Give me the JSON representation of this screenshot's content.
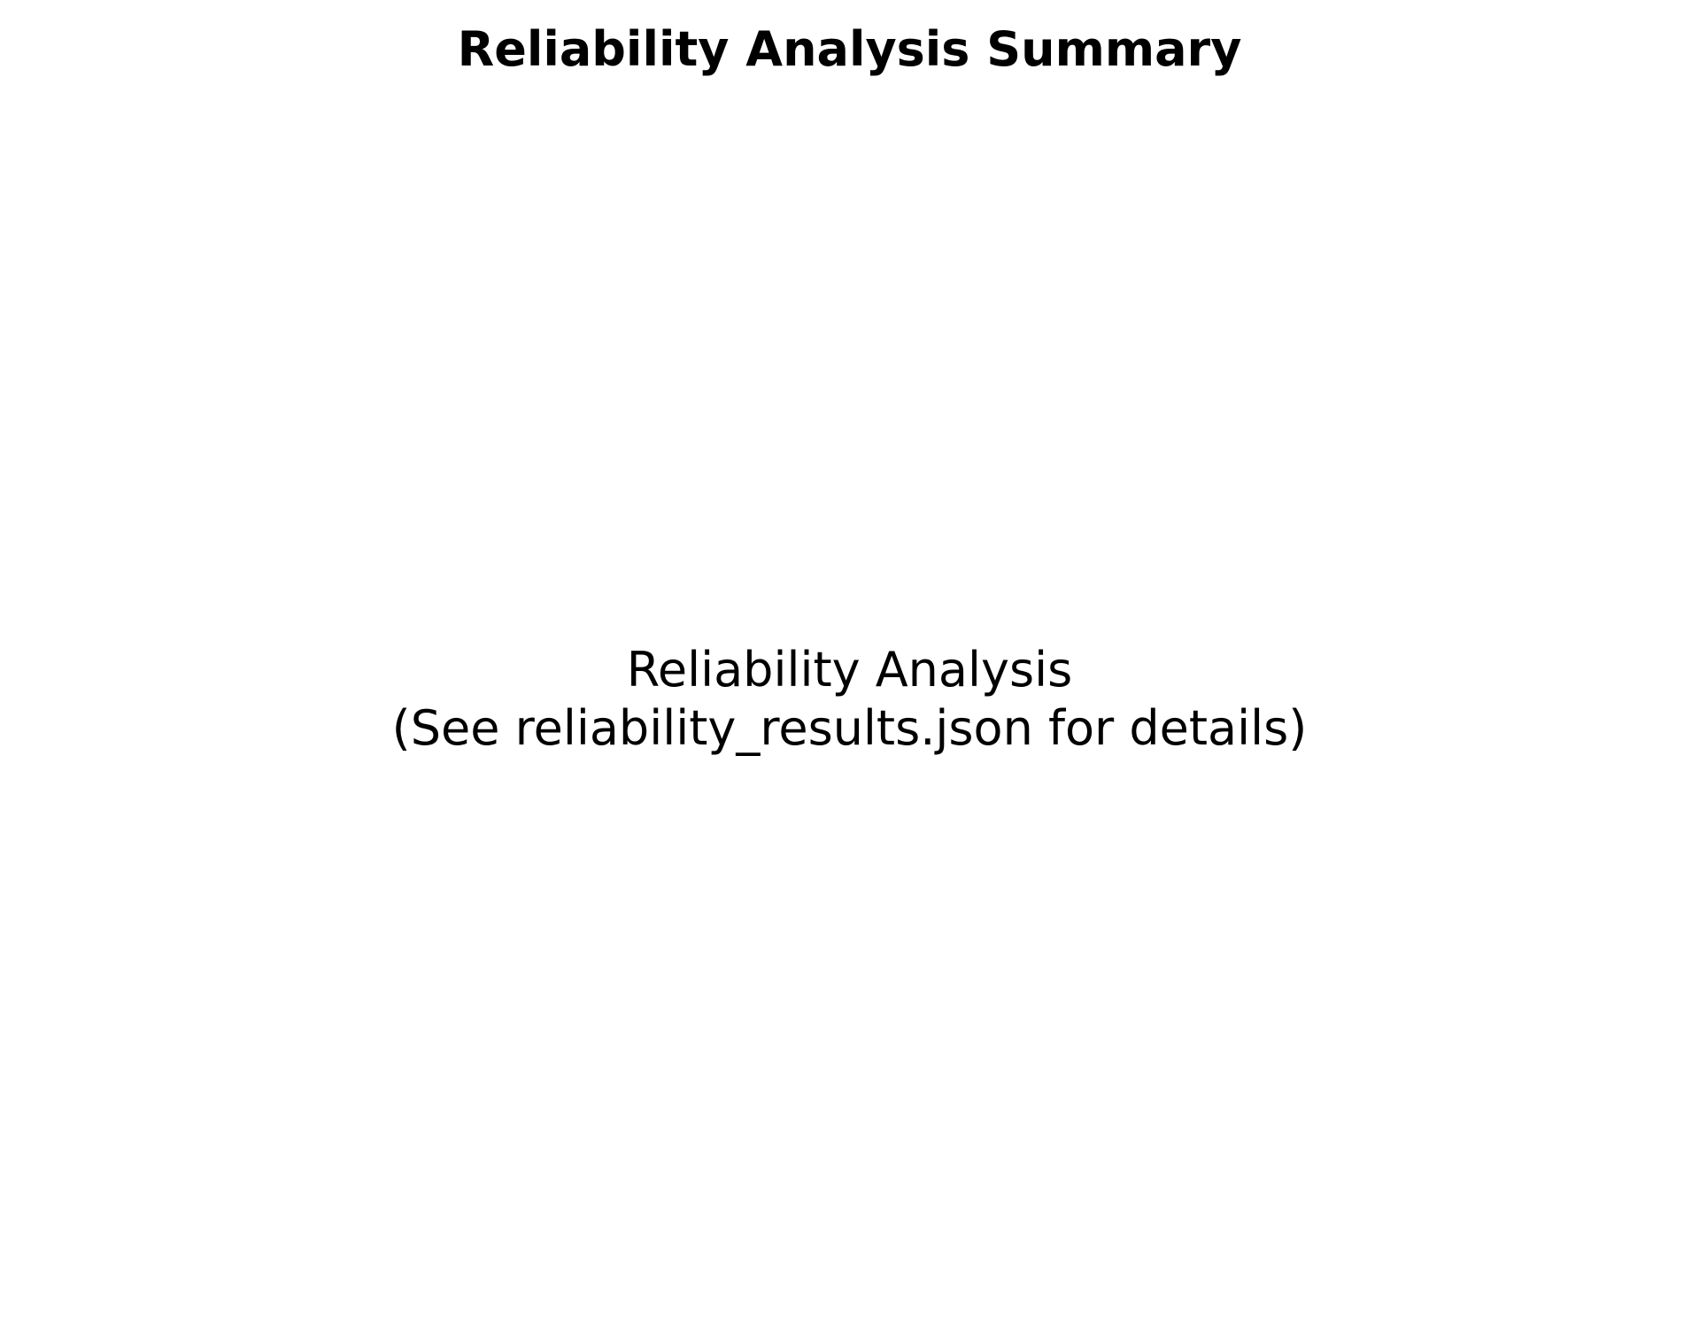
{
  "page": {
    "title": "Reliability Analysis Summary"
  },
  "message": {
    "line1": "Reliability Analysis",
    "line2": "(See reliability_results.json for details)"
  }
}
